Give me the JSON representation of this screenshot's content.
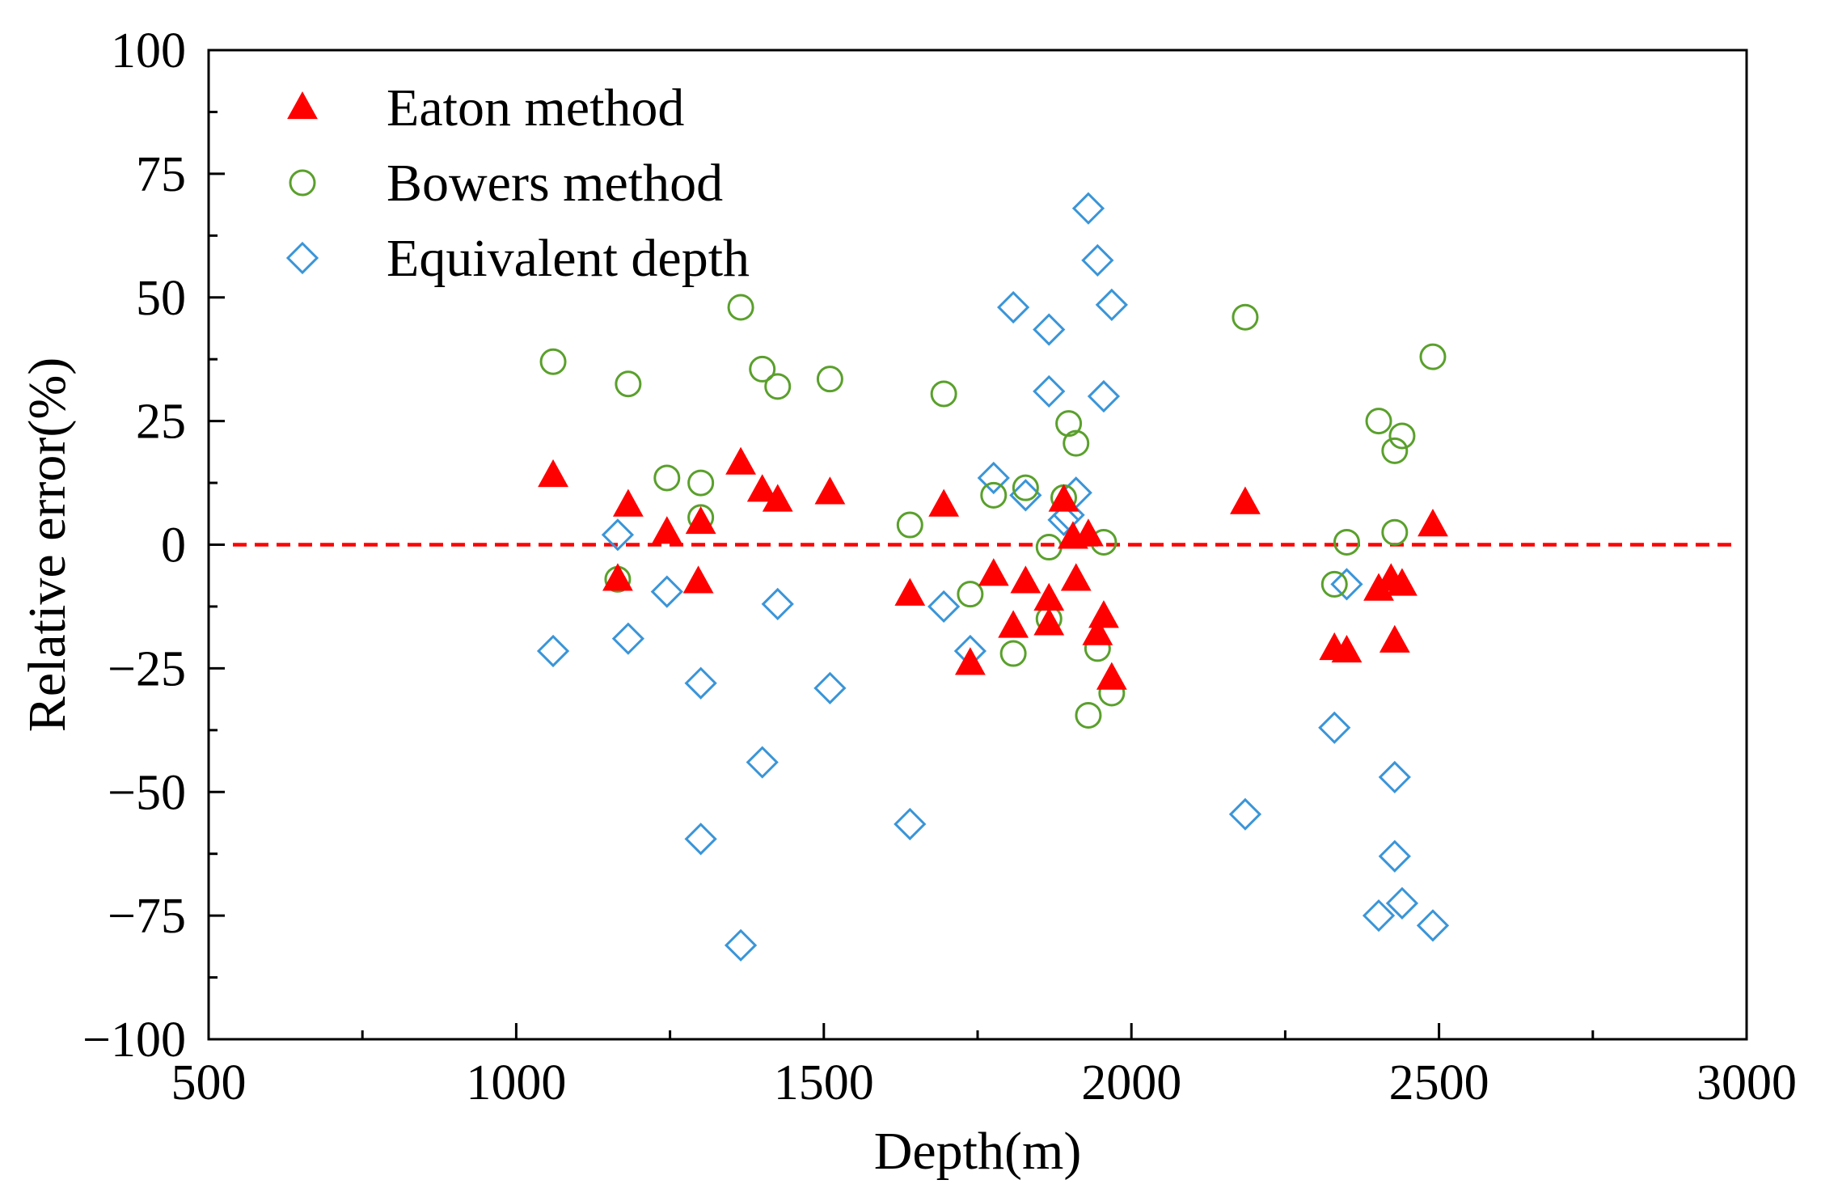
{
  "chart_data": {
    "type": "scatter",
    "title": "",
    "xlabel": "Depth(m)",
    "ylabel": "Relative error(%)",
    "xlim": [
      500,
      3000
    ],
    "ylim": [
      -100,
      100
    ],
    "xticks": [
      500,
      1000,
      1500,
      2000,
      2500,
      3000
    ],
    "yticks": [
      -100,
      -75,
      -50,
      -25,
      0,
      25,
      50,
      75,
      100
    ],
    "xtick_labels": [
      "500",
      "1000",
      "1500",
      "2000",
      "2500",
      "3000"
    ],
    "ytick_labels": [
      "−100",
      "−75",
      "−50",
      "−25",
      "0",
      "25",
      "50",
      "75",
      "100"
    ],
    "reference_line": {
      "y": 0,
      "style": "dashed",
      "color": "#ff0000"
    },
    "legend_position": "top-left",
    "series": [
      {
        "name": "Eaton method",
        "marker": "filled-triangle",
        "color": "#ff0000",
        "points": [
          [
            1060,
            14
          ],
          [
            1165,
            -7
          ],
          [
            1182,
            8
          ],
          [
            1245,
            2.5
          ],
          [
            1296,
            -7.5
          ],
          [
            1300,
            4.5
          ],
          [
            1365,
            16.5
          ],
          [
            1400,
            11
          ],
          [
            1425,
            9
          ],
          [
            1510,
            10.5
          ],
          [
            1640,
            -10
          ],
          [
            1695,
            8
          ],
          [
            1738,
            -24
          ],
          [
            1776,
            -6
          ],
          [
            1808,
            -16.5
          ],
          [
            1828,
            -7.5
          ],
          [
            1866,
            -11
          ],
          [
            1866,
            -16
          ],
          [
            1890,
            9
          ],
          [
            1905,
            1.5
          ],
          [
            1910,
            -7
          ],
          [
            1930,
            2
          ],
          [
            1945,
            -18
          ],
          [
            1955,
            -14.5
          ],
          [
            1968,
            -27
          ],
          [
            2185,
            8.5
          ],
          [
            2330,
            -21
          ],
          [
            2350,
            -21.5
          ],
          [
            2402,
            -9
          ],
          [
            2422,
            -7
          ],
          [
            2428,
            -19.5
          ],
          [
            2440,
            -8
          ],
          [
            2490,
            4
          ]
        ]
      },
      {
        "name": "Bowers method",
        "marker": "open-circle",
        "color": "#5aa02c",
        "points": [
          [
            1060,
            37
          ],
          [
            1165,
            -7
          ],
          [
            1182,
            32.5
          ],
          [
            1245,
            13.5
          ],
          [
            1300,
            12.5
          ],
          [
            1300,
            5.5
          ],
          [
            1365,
            48
          ],
          [
            1400,
            35.5
          ],
          [
            1425,
            32
          ],
          [
            1510,
            33.5
          ],
          [
            1640,
            4
          ],
          [
            1695,
            30.5
          ],
          [
            1738,
            -10
          ],
          [
            1776,
            10
          ],
          [
            1808,
            -22
          ],
          [
            1828,
            11.5
          ],
          [
            1866,
            -0.5
          ],
          [
            1866,
            -15
          ],
          [
            1890,
            9.5
          ],
          [
            1898,
            24.5
          ],
          [
            1910,
            20.5
          ],
          [
            1930,
            -34.5
          ],
          [
            1945,
            -21
          ],
          [
            1955,
            0.5
          ],
          [
            1968,
            -30
          ],
          [
            2185,
            46
          ],
          [
            2330,
            -8
          ],
          [
            2350,
            0.5
          ],
          [
            2402,
            25
          ],
          [
            2428,
            19
          ],
          [
            2428,
            2.5
          ],
          [
            2440,
            22
          ],
          [
            2490,
            38
          ]
        ]
      },
      {
        "name": "Equivalent depth",
        "marker": "open-diamond",
        "color": "#3a95d8",
        "points": [
          [
            1060,
            -21.5
          ],
          [
            1165,
            2
          ],
          [
            1182,
            -19
          ],
          [
            1245,
            -9.5
          ],
          [
            1300,
            -28
          ],
          [
            1300,
            -59.5
          ],
          [
            1365,
            -81
          ],
          [
            1400,
            -44
          ],
          [
            1425,
            -12
          ],
          [
            1510,
            -29
          ],
          [
            1640,
            -56.5
          ],
          [
            1695,
            -12.5
          ],
          [
            1738,
            -21.5
          ],
          [
            1776,
            13.5
          ],
          [
            1808,
            48
          ],
          [
            1828,
            10
          ],
          [
            1866,
            43.5
          ],
          [
            1866,
            31
          ],
          [
            1890,
            5
          ],
          [
            1898,
            6
          ],
          [
            1910,
            10.5
          ],
          [
            1930,
            68
          ],
          [
            1945,
            57.5
          ],
          [
            1955,
            30
          ],
          [
            1968,
            48.5
          ],
          [
            2185,
            -54.5
          ],
          [
            2330,
            -37
          ],
          [
            2350,
            -8
          ],
          [
            2402,
            -75
          ],
          [
            2428,
            -47
          ],
          [
            2428,
            -63
          ],
          [
            2440,
            -72.5
          ],
          [
            2490,
            -77
          ]
        ]
      }
    ]
  }
}
